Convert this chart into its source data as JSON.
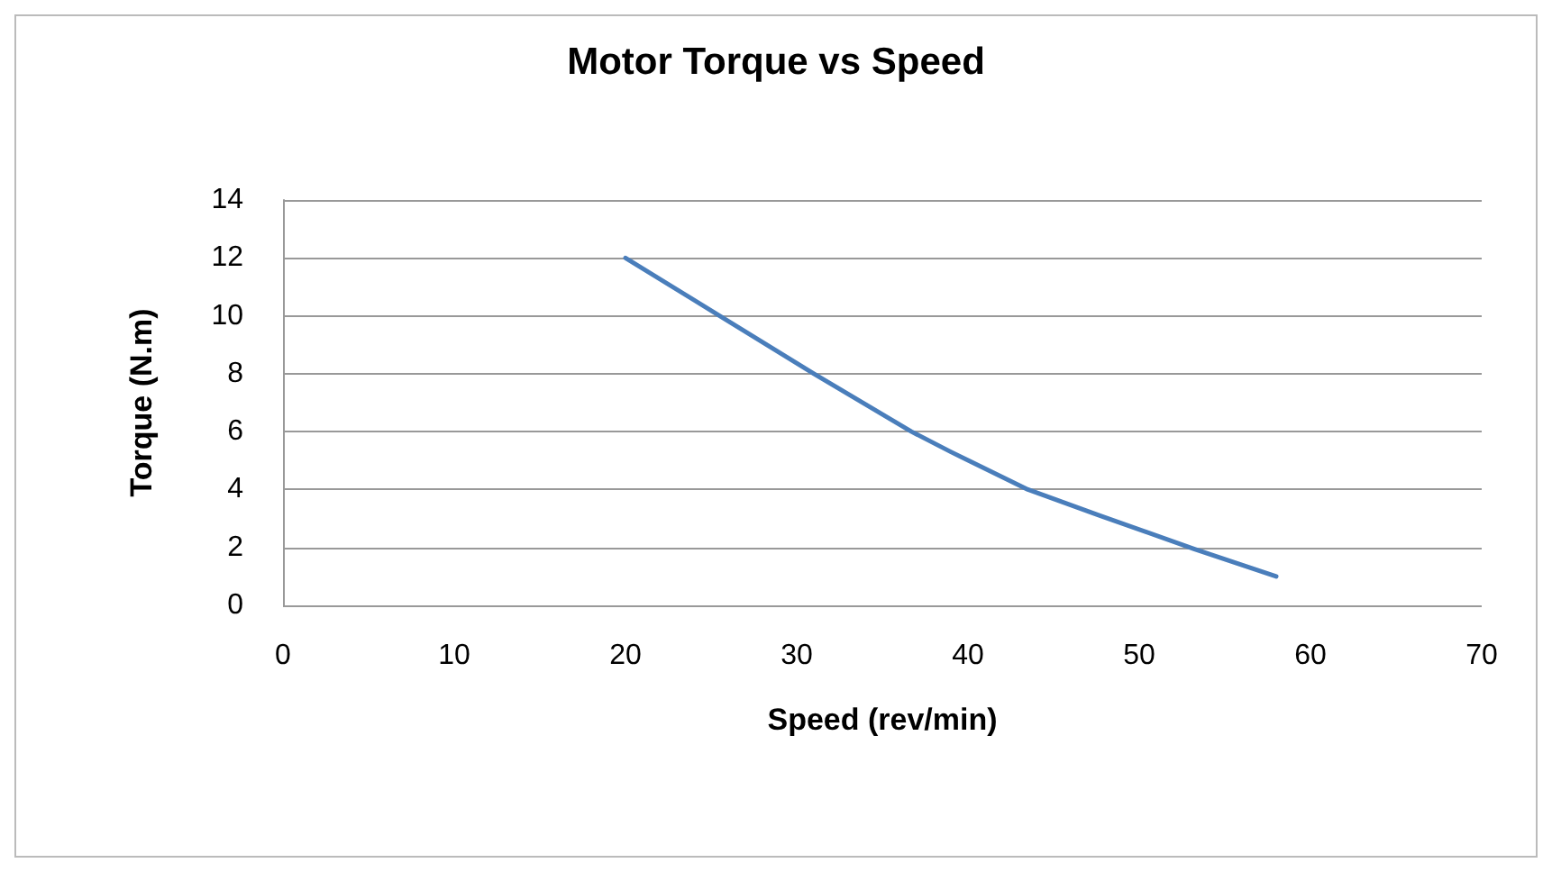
{
  "chart_data": {
    "type": "line",
    "title": "Motor Torque vs Speed",
    "xlabel": "Speed (rev/min)",
    "ylabel": "Torque (N.m)",
    "x": [
      20,
      25.5,
      31,
      36.7,
      39,
      43.5,
      47.7,
      53.2,
      58
    ],
    "series": [
      {
        "color": "#4a7ebb",
        "values": [
          12,
          10,
          8,
          6,
          5.3,
          4,
          3.1,
          1.95,
          1
        ]
      }
    ],
    "xlim": [
      0,
      70
    ],
    "xticks": [
      0,
      10,
      20,
      30,
      40,
      50,
      60,
      70
    ],
    "ylim": [
      0,
      14
    ],
    "yticks": [
      0,
      2,
      4,
      6,
      8,
      10,
      12,
      14
    ],
    "grid": "y",
    "marker": "none",
    "line_style": "solid"
  }
}
